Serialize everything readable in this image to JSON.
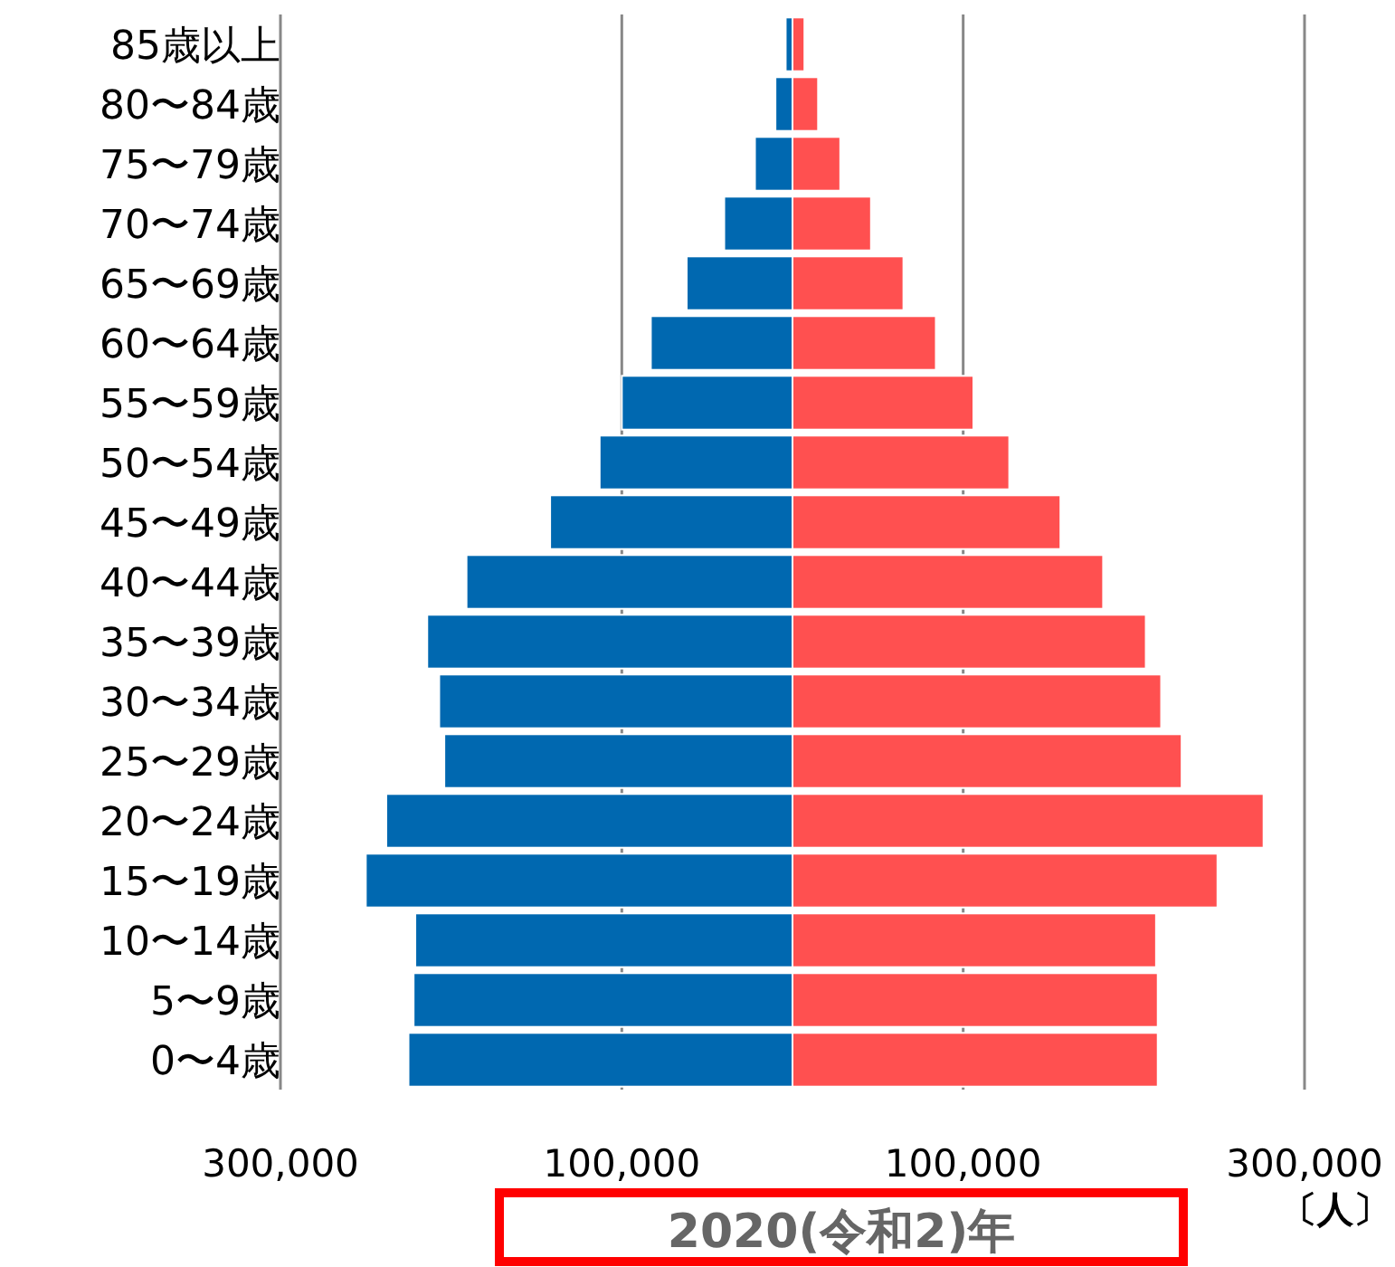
{
  "chart_data": {
    "type": "bar",
    "orientation": "horizontal",
    "title": "2020(令和2)年",
    "xlabel": "〔人〕",
    "categories": [
      "85歳以上",
      "80〜84歳",
      "75〜79歳",
      "70〜74歳",
      "65〜69歳",
      "60〜64歳",
      "55〜59歳",
      "50〜54歳",
      "45〜49歳",
      "40〜44歳",
      "35〜39歳",
      "30〜34歳",
      "25〜29歳",
      "20〜24歳",
      "15〜19歳",
      "10〜14歳",
      "5〜9歳",
      "0〜4歳"
    ],
    "series": [
      {
        "color": "#0068b0",
        "values": [
          -4000,
          -10000,
          -22000,
          -40000,
          -62000,
          -83000,
          -100000,
          -113000,
          -142000,
          -191000,
          -214000,
          -207000,
          -204000,
          -238000,
          -250000,
          -221000,
          -222000,
          -225000
        ]
      },
      {
        "color": "#ff5050",
        "values": [
          7000,
          15000,
          28000,
          46000,
          65000,
          84000,
          106000,
          127000,
          157000,
          182000,
          207000,
          216000,
          228000,
          276000,
          249000,
          213000,
          214000,
          214000
        ]
      }
    ],
    "xlim": [
      -300000,
      300000
    ],
    "stacked": true,
    "xticks": [
      {
        "value": -300000,
        "label": "300,000"
      },
      {
        "value": -100000,
        "label": "100,000"
      },
      {
        "value": 100000,
        "label": "100,000"
      },
      {
        "value": 300000,
        "label": "300,000"
      }
    ],
    "grid": "x"
  }
}
